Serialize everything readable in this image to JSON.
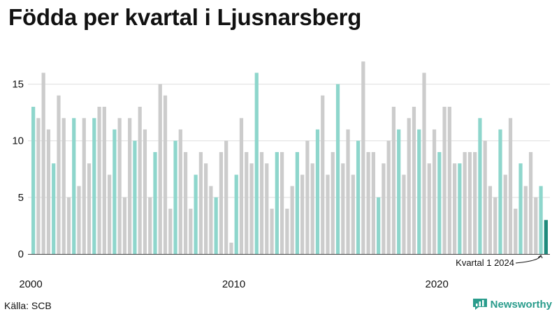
{
  "title": "Födda per kvartal i Ljusnarsberg",
  "source": "Källa: SCB",
  "brand": {
    "name": "Newsworthy",
    "icon": "newsworthy-logo-icon"
  },
  "colors": {
    "q1": "#8ed6cc",
    "other": "#cccccc",
    "latest": "#1f8a7c",
    "grid": "#dddddd",
    "brand": "#2a9c8c"
  },
  "annotation": {
    "text": "Kvartal 1 2024"
  },
  "chart_data": {
    "type": "bar",
    "title": "Födda per kvartal i Ljusnarsberg",
    "xlabel": "",
    "ylabel": "",
    "ylim": [
      0,
      17.5
    ],
    "yticks": [
      0,
      5,
      10,
      15
    ],
    "xticks": [
      "2000",
      "2010",
      "2020"
    ],
    "grid": true,
    "legend": "none",
    "start_year": 2000,
    "values": [
      13,
      12,
      16,
      11,
      8,
      14,
      12,
      5,
      12,
      6,
      12,
      8,
      12,
      13,
      13,
      7,
      11,
      12,
      5,
      12,
      10,
      13,
      11,
      5,
      9,
      15,
      14,
      4,
      10,
      11,
      9,
      4,
      7,
      9,
      8,
      6,
      5,
      9,
      10,
      1,
      7,
      12,
      9,
      8,
      16,
      9,
      8,
      4,
      9,
      9,
      4,
      6,
      9,
      7,
      10,
      8,
      11,
      14,
      7,
      9,
      15,
      8,
      11,
      7,
      10,
      17,
      9,
      9,
      5,
      8,
      10,
      13,
      11,
      7,
      12,
      13,
      11,
      16,
      8,
      11,
      9,
      13,
      13,
      8,
      8,
      9,
      9,
      9,
      12,
      10,
      6,
      5,
      11,
      7,
      12,
      4,
      8,
      6,
      9,
      5,
      6,
      3
    ]
  }
}
